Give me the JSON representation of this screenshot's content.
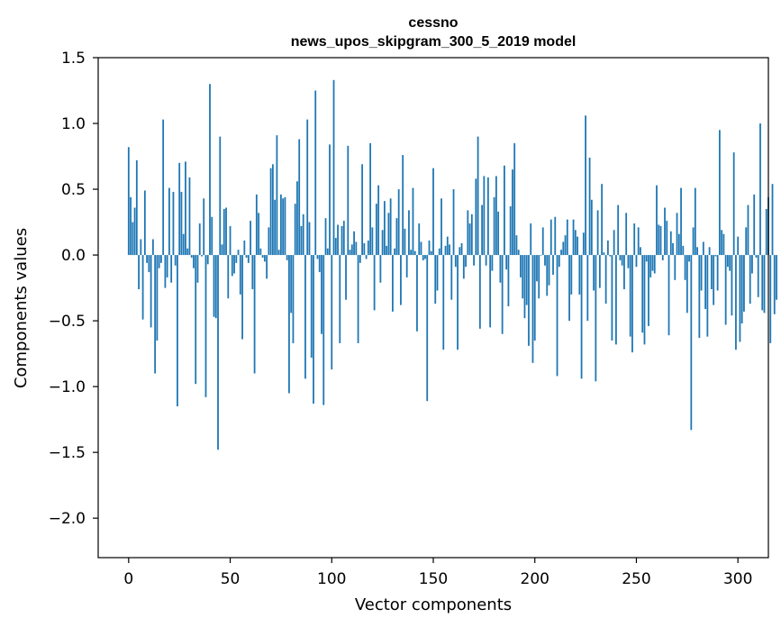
{
  "chart_data": {
    "type": "bar",
    "title": "cessno",
    "subtitle": "news_upos_skipgram_300_5_2019 model",
    "xlabel": "Vector components",
    "ylabel": "Components values",
    "xlim": [
      -15,
      315
    ],
    "ylim": [
      -2.3,
      1.5
    ],
    "x_ticks": [
      0,
      50,
      100,
      150,
      200,
      250,
      300
    ],
    "x_tick_labels": [
      "0",
      "50",
      "100",
      "150",
      "200",
      "250",
      "300"
    ],
    "y_ticks": [
      1.5,
      1.0,
      0.5,
      0.0,
      -0.5,
      -1.0,
      -1.5,
      -2.0
    ],
    "y_tick_labels": [
      "1.5",
      "1.0",
      "0.5",
      "0.0",
      "−0.5",
      "−1.0",
      "−1.5",
      "−2.0"
    ],
    "grid": false,
    "bar_color": "#1f77b4",
    "series": [
      {
        "values": [
          0.82,
          0.44,
          0.25,
          0.36,
          0.72,
          -0.26,
          0.12,
          -0.49,
          0.49,
          -0.06,
          -0.13,
          -0.55,
          0.12,
          -0.9,
          -0.65,
          -0.1,
          -0.06,
          1.03,
          -0.25,
          -0.17,
          0.51,
          -0.21,
          0.48,
          -0.08,
          -1.15,
          0.7,
          0.48,
          0.16,
          0.71,
          0.05,
          0.59,
          -0.02,
          -0.1,
          -0.98,
          -0.21,
          0.24,
          -0.01,
          0.43,
          -1.08,
          -0.07,
          1.3,
          0.29,
          -0.47,
          -0.48,
          -1.48,
          0.9,
          0.08,
          0.35,
          0.36,
          -0.33,
          0.22,
          -0.16,
          -0.14,
          -0.06,
          0.04,
          -0.3,
          -0.64,
          0.11,
          -0.02,
          -0.06,
          0.26,
          -0.26,
          -0.9,
          0.46,
          0.32,
          0.05,
          -0.02,
          -0.05,
          -0.18,
          0.21,
          0.66,
          0.69,
          0.42,
          0.91,
          0.04,
          0.46,
          0.43,
          0.44,
          -0.04,
          -1.05,
          -0.44,
          -0.67,
          0.39,
          0.56,
          0.88,
          0.22,
          0.31,
          -0.94,
          1.03,
          0.25,
          -0.78,
          -1.13,
          1.25,
          -0.03,
          -0.13,
          -0.6,
          -1.14,
          0.28,
          0.05,
          0.84,
          -0.87,
          1.33,
          0.13,
          0.23,
          -0.67,
          0.22,
          0.26,
          -0.34,
          0.83,
          0.04,
          0.08,
          0.18,
          0.1,
          -0.67,
          -0.06,
          0.69,
          0.09,
          -0.03,
          0.11,
          0.85,
          0.21,
          -0.42,
          0.39,
          0.53,
          -0.21,
          0.19,
          0.41,
          0.07,
          0.32,
          0.43,
          -0.43,
          0.05,
          0.28,
          0.5,
          -0.38,
          0.76,
          0.2,
          -0.17,
          0.34,
          0.04,
          0.51,
          0.03,
          -0.58,
          0.24,
          0.1,
          -0.04,
          -0.03,
          -1.11,
          0.11,
          0.03,
          0.66,
          -0.37,
          -0.27,
          0.05,
          0.43,
          -0.72,
          0.07,
          0.14,
          0.08,
          -0.34,
          0.5,
          -0.09,
          -0.72,
          0.06,
          0.09,
          -0.18,
          -0.09,
          0.34,
          0.24,
          0.31,
          -0.08,
          0.58,
          0.9,
          -0.56,
          0.38,
          0.6,
          -0.08,
          0.59,
          -0.55,
          -0.12,
          0.44,
          0.6,
          0.33,
          -0.21,
          -0.6,
          0.68,
          -0.11,
          -0.39,
          0.37,
          0.65,
          0.85,
          0.15,
          0.04,
          -0.17,
          -0.33,
          -0.48,
          -0.38,
          -0.69,
          0.24,
          -0.82,
          -0.65,
          -0.2,
          -0.33,
          0.0,
          0.21,
          -0.08,
          -0.31,
          -0.23,
          0.27,
          -0.15,
          0.29,
          -0.92,
          -0.09,
          0.04,
          0.1,
          0.15,
          0.27,
          -0.5,
          -0.3,
          0.27,
          0.19,
          0.14,
          -0.3,
          -0.94,
          0.17,
          1.06,
          -0.5,
          0.74,
          0.42,
          -0.27,
          -0.96,
          0.34,
          -0.25,
          0.54,
          0.02,
          -0.37,
          0.11,
          -0.01,
          -0.65,
          0.19,
          -0.68,
          0.38,
          -0.04,
          -0.08,
          -0.26,
          0.32,
          -0.1,
          -0.62,
          -0.74,
          0.24,
          -0.09,
          0.21,
          0.06,
          -0.59,
          -0.68,
          -0.05,
          -0.54,
          -0.17,
          -0.12,
          -0.14,
          0.53,
          0.23,
          0.22,
          -0.04,
          0.36,
          0.26,
          -0.61,
          0.18,
          0.09,
          -0.19,
          0.32,
          0.16,
          0.51,
          0.07,
          -0.19,
          -0.44,
          -0.05,
          -1.33,
          0.21,
          0.51,
          0.06,
          -0.63,
          -0.27,
          0.1,
          -0.41,
          -0.62,
          0.06,
          -0.26,
          -0.38,
          -0.01,
          -0.27,
          0.95,
          0.19,
          0.16,
          -0.53,
          -0.09,
          -0.12,
          -0.46,
          0.78,
          -0.72,
          0.14,
          -0.66,
          -0.52,
          -0.43,
          0.21,
          0.38,
          -0.37,
          -0.14,
          0.46,
          -0.02,
          -0.32,
          1.0,
          -0.42,
          -0.44,
          0.35,
          0.44,
          -0.67,
          0.54,
          -0.45,
          -0.34
        ]
      }
    ]
  }
}
